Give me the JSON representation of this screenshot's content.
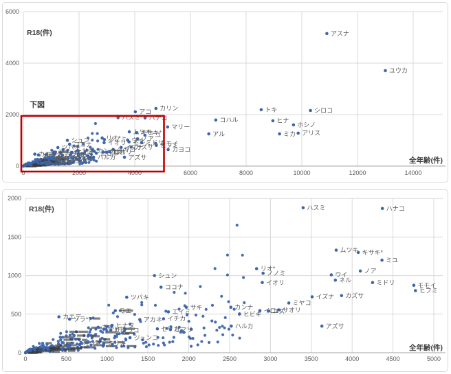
{
  "colors": {
    "point": "#3d65ab",
    "grid": "#d9d9d9",
    "axis_line": "#a3a3a3",
    "tick_text": "#595959",
    "label_text": "#595959",
    "axis_title_text": "#3f3f3f",
    "highlight": "#c00000",
    "smear": "#3c3c3c",
    "chart_border": "#d9d9d9",
    "background": "#ffffff"
  },
  "chart_data": {
    "type": "scatter",
    "description": "Two scatter plots of the same dataset: R18(件) vs 全年齢(件). Top chart is full range; red box 下図 marks the 0-5000 x 0-2000 region shown zoomed in the bottom chart.",
    "charts": [
      {
        "key": "overview",
        "y_axis_title": "R18(件)",
        "x_axis_title": "全年齢(件)",
        "x_ticks": [
          0,
          2000,
          4000,
          6000,
          8000,
          10000,
          12000,
          14000
        ],
        "y_ticks": [
          0,
          2000,
          4000,
          6000
        ],
        "x_max": 15100,
        "y_max": 6100,
        "grid": true,
        "highlight": {
          "label": "下図",
          "x0": 0,
          "y0": 0,
          "x1": 5000,
          "y1": 2000
        }
      },
      {
        "key": "detail",
        "y_axis_title": "R18(件)",
        "x_axis_title": "全年齢(件)",
        "x_ticks": [
          0,
          500,
          1000,
          1500,
          2000,
          2500,
          3000,
          3500,
          4000,
          4500,
          5000
        ],
        "y_ticks": [
          0,
          500,
          1000,
          1500,
          2000
        ],
        "x_max": 5090,
        "y_max": 2010,
        "grid": true,
        "highlight": null
      }
    ],
    "series": [
      {
        "name": "labeled_characters",
        "points": [
          {
            "label": "アスナ",
            "x": 10900,
            "y": 5150
          },
          {
            "label": "ユウカ",
            "x": 13000,
            "y": 3710
          },
          {
            "label": "トキ",
            "x": 8540,
            "y": 2190
          },
          {
            "label": "シロコ",
            "x": 10310,
            "y": 2160
          },
          {
            "label": "カリン",
            "x": 4760,
            "y": 2240
          },
          {
            "label": "アコ",
            "x": 4020,
            "y": 2110
          },
          {
            "label": "コハル",
            "x": 6910,
            "y": 1790
          },
          {
            "label": "ヒナ",
            "x": 8960,
            "y": 1760
          },
          {
            "label": "ホシノ",
            "x": 9700,
            "y": 1600
          },
          {
            "label": "アリス",
            "x": 9870,
            "y": 1280
          },
          {
            "label": "ミカ",
            "x": 9200,
            "y": 1250
          },
          {
            "label": "アル",
            "x": 6660,
            "y": 1250
          },
          {
            "label": "マリー",
            "x": 5180,
            "y": 1520
          },
          {
            "label": "カヨコ",
            "x": 5200,
            "y": 640
          },
          {
            "label": "ハスミ",
            "x": 3400,
            "y": 1880
          },
          {
            "label": "ハナコ",
            "x": 4370,
            "y": 1870
          },
          {
            "label": "ムツキ",
            "x": 3805,
            "y": 1330
          },
          {
            "label": "キサキ*",
            "x": 4075,
            "y": 1300
          },
          {
            "label": "ミユ",
            "x": 4365,
            "y": 1200
          },
          {
            "label": "リオ*",
            "x": 2830,
            "y": 1090
          },
          {
            "label": "ノノミ",
            "x": 2910,
            "y": 1030
          },
          {
            "label": "イオリ",
            "x": 2900,
            "y": 910
          },
          {
            "label": "ウイ",
            "x": 3745,
            "y": 1010
          },
          {
            "label": "ネル",
            "x": 3795,
            "y": 940
          },
          {
            "label": "ノア",
            "x": 4100,
            "y": 1060
          },
          {
            "label": "ミドリ",
            "x": 4250,
            "y": 910
          },
          {
            "label": "モモイ",
            "x": 4755,
            "y": 875
          },
          {
            "label": "ヒフミ",
            "x": 4775,
            "y": 805
          },
          {
            "label": "イズナ",
            "x": 3510,
            "y": 725
          },
          {
            "label": "カズサ",
            "x": 3870,
            "y": 740
          },
          {
            "label": "ミヤコ",
            "x": 3225,
            "y": 645
          },
          {
            "label": "カンナ",
            "x": 2515,
            "y": 590
          },
          {
            "label": "ヒビキ",
            "x": 2620,
            "y": 500
          },
          {
            "label": "イロハ",
            "x": 2870,
            "y": 545
          },
          {
            "label": "ユズ",
            "x": 2980,
            "y": 540
          },
          {
            "label": "サオリ",
            "x": 3100,
            "y": 555
          },
          {
            "label": "ハルカ",
            "x": 2520,
            "y": 345
          },
          {
            "label": "アズサ",
            "x": 3630,
            "y": 345
          },
          {
            "label": "シュン",
            "x": 1580,
            "y": 1000
          },
          {
            "label": "ココナ",
            "x": 1660,
            "y": 850
          },
          {
            "label": "ツバキ",
            "x": 1240,
            "y": 720
          },
          {
            "label": "モエ",
            "x": 1100,
            "y": 545
          },
          {
            "label": "サキ",
            "x": 1970,
            "y": 590
          },
          {
            "label": "エイミ",
            "x": 1750,
            "y": 530
          },
          {
            "label": "アカネ",
            "x": 1400,
            "y": 430
          },
          {
            "label": "イチカ",
            "x": 1690,
            "y": 440
          },
          {
            "label": "カエデ",
            "x": 410,
            "y": 465
          },
          {
            "label": "ソラ*?",
            "x": 540,
            "y": 435
          },
          {
            "label": "カホ",
            "x": 890,
            "y": 330
          },
          {
            "label": "ヒナタ",
            "x": 1060,
            "y": 355
          },
          {
            "label": "チヒロ",
            "x": 960,
            "y": 305
          },
          {
            "label": "サクラコ",
            "x": 1045,
            "y": 290
          },
          {
            "label": "セリカ",
            "x": 1615,
            "y": 310
          },
          {
            "label": "ヒマリ",
            "x": 1775,
            "y": 300
          },
          {
            "label": "ジュンコ",
            "x": 1280,
            "y": 195
          },
          {
            "label": "ケイ*",
            "x": 665,
            "y": 105
          },
          {
            "label": "ミサキ",
            "x": 960,
            "y": 120
          }
        ]
      }
    ],
    "unlabeled_cluster": {
      "note": "Dense cluster of several hundred unlabeled points concentrated near the origin (mostly x < 1500, y < 400) with illegible overlapping tiny labels; reproduced procedurally as approximation.",
      "count": 320,
      "seed": 42,
      "x_spread": 2700
    }
  }
}
